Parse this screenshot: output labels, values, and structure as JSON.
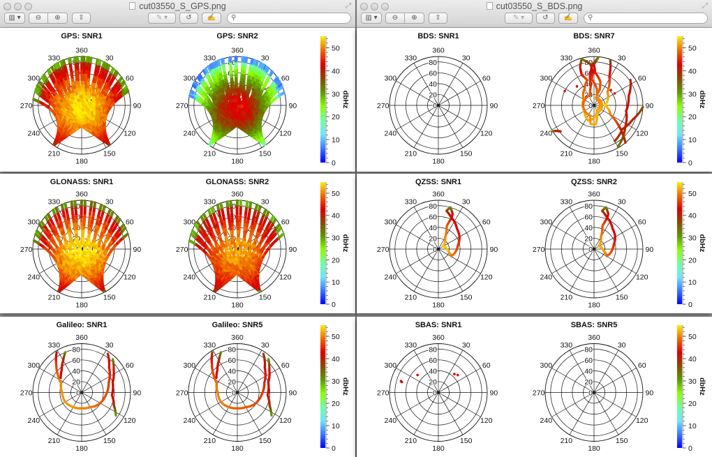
{
  "windows": [
    {
      "title": "cut03550_S_GPS.png"
    },
    {
      "title": "cut03550_S_BDS.png"
    }
  ],
  "toolbar": {
    "sidebar_icon": "sidebar-icon",
    "zoom_out_icon": "zoom-out-icon",
    "zoom_in_icon": "zoom-in-icon",
    "share_icon": "share-icon",
    "markup_icon": "markup-pen-icon",
    "rotate_icon": "rotate-icon",
    "annotate_icon": "edit-annotate-icon",
    "search_placeholder": "",
    "sidebar_glyph": "▥ ▾",
    "zoom_out_glyph": "⊖",
    "zoom_in_glyph": "⊕",
    "share_glyph": "⇪",
    "markup_glyph": "✎ ▾",
    "rotate_glyph": "↺",
    "annotate_glyph": "✍",
    "search_glyph": "⚲",
    "fullscreen_glyph": "⤢"
  },
  "colorbar": {
    "label": "dbHz",
    "range": [
      0,
      55
    ],
    "ticks": [
      "0",
      "10",
      "20",
      "30",
      "40",
      "50"
    ],
    "colormap": [
      "#0000ff",
      "#3a78ff",
      "#6fe6ff",
      "#6dffa0",
      "#8cff00",
      "#5c9a00",
      "#8a4a00",
      "#dc0000",
      "#ee6a00",
      "#ffee00"
    ]
  },
  "chart_data": [
    {
      "type": "scatter",
      "projection": "polar",
      "title": "GPS: SNR1",
      "azimuth_ticks": [
        "360",
        "30",
        "60",
        "90",
        "120",
        "150",
        "180",
        "210",
        "240",
        "270",
        "300",
        "330"
      ],
      "radial_ticks": [
        "0",
        "20",
        "40",
        "60",
        "80"
      ],
      "pattern": "dense",
      "snr_center": 55,
      "snr_edge": 38
    },
    {
      "type": "scatter",
      "projection": "polar",
      "title": "GPS: SNR2",
      "azimuth_ticks": [
        "360",
        "30",
        "60",
        "90",
        "120",
        "150",
        "180",
        "210",
        "240",
        "270",
        "300",
        "330"
      ],
      "radial_ticks": [
        "0",
        "20",
        "40",
        "60",
        "80"
      ],
      "pattern": "dense",
      "snr_center": 44,
      "snr_edge": 15
    },
    {
      "type": "scatter",
      "projection": "polar",
      "title": "BDS: SNR1",
      "azimuth_ticks": [
        "360",
        "30",
        "60",
        "90",
        "120",
        "150",
        "180",
        "210",
        "240",
        "270",
        "300",
        "330"
      ],
      "radial_ticks": [
        "0",
        "20",
        "40",
        "60",
        "80"
      ],
      "tracks": [],
      "points": []
    },
    {
      "type": "scatter",
      "projection": "polar",
      "title": "BDS: SNR7",
      "azimuth_ticks": [
        "360",
        "30",
        "60",
        "90",
        "120",
        "150",
        "180",
        "210",
        "240",
        "270",
        "300",
        "330"
      ],
      "radial_ticks": [
        "0",
        "20",
        "40",
        "60",
        "80"
      ],
      "tracks": [
        [
          [
            345,
            88,
            33
          ],
          [
            340,
            75,
            40
          ],
          [
            338,
            60,
            44
          ],
          [
            345,
            48,
            47
          ],
          [
            330,
            35,
            48
          ],
          [
            300,
            22,
            50
          ],
          [
            240,
            20,
            52
          ],
          [
            200,
            30,
            52
          ],
          [
            185,
            25,
            52
          ],
          [
            150,
            10,
            52
          ],
          [
            20,
            12,
            50
          ],
          [
            10,
            30,
            48
          ],
          [
            355,
            48,
            46
          ],
          [
            358,
            62,
            44
          ],
          [
            355,
            76,
            40
          ],
          [
            345,
            88,
            33
          ]
        ],
        [
          [
            5,
            88,
            33
          ],
          [
            0,
            75,
            40
          ],
          [
            2,
            60,
            44
          ],
          [
            15,
            45,
            47
          ],
          [
            20,
            30,
            48
          ],
          [
            15,
            15,
            50
          ],
          [
            160,
            15,
            52
          ],
          [
            175,
            35,
            52
          ],
          [
            190,
            35,
            52
          ],
          [
            200,
            20,
            50
          ],
          [
            340,
            20,
            48
          ],
          [
            350,
            35,
            46
          ],
          [
            352,
            55,
            44
          ],
          [
            358,
            75,
            40
          ],
          [
            5,
            88,
            33
          ]
        ],
        [
          [
            20,
            88,
            38
          ],
          [
            28,
            60,
            44
          ],
          [
            45,
            35,
            50
          ],
          [
            90,
            20,
            54
          ],
          [
            120,
            35,
            50
          ],
          [
            128,
            55,
            46
          ],
          [
            135,
            75,
            42
          ],
          [
            140,
            90,
            38
          ]
        ],
        [
          [
            55,
            82,
            40
          ],
          [
            75,
            66,
            41
          ],
          [
            100,
            60,
            42
          ],
          [
            125,
            70,
            40
          ],
          [
            150,
            88,
            34
          ]
        ],
        [
          [
            92,
            90,
            36
          ],
          [
            110,
            76,
            40
          ],
          [
            130,
            68,
            40
          ],
          [
            150,
            76,
            38
          ]
        ],
        [
          [
            238,
            90,
            30
          ],
          [
            236,
            84,
            40
          ],
          [
            232,
            78,
            42
          ]
        ]
      ],
      "points": [
        [
          296,
          60,
          42
        ],
        [
          318,
          47,
          42
        ],
        [
          48,
          42,
          44
        ],
        [
          60,
          44,
          42
        ]
      ]
    },
    {
      "type": "scatter",
      "projection": "polar",
      "title": "GLONASS: SNR1",
      "azimuth_ticks": [
        "360",
        "30",
        "60",
        "90",
        "120",
        "150",
        "180",
        "210",
        "240",
        "270",
        "300",
        "330"
      ],
      "radial_ticks": [
        "0",
        "20",
        "40",
        "60",
        "80"
      ],
      "pattern": "fan",
      "snr_center": 55,
      "snr_edge": 40
    },
    {
      "type": "scatter",
      "projection": "polar",
      "title": "GLONASS: SNR2",
      "azimuth_ticks": [
        "360",
        "30",
        "60",
        "90",
        "120",
        "150",
        "180",
        "210",
        "240",
        "270",
        "300",
        "330"
      ],
      "radial_ticks": [
        "0",
        "20",
        "40",
        "60",
        "80"
      ],
      "pattern": "fan",
      "snr_center": 52,
      "snr_edge": 38
    },
    {
      "type": "scatter",
      "projection": "polar",
      "title": "QZSS: SNR1",
      "azimuth_ticks": [
        "360",
        "30",
        "60",
        "90",
        "120",
        "150",
        "180",
        "210",
        "240",
        "270",
        "300",
        "330"
      ],
      "radial_ticks": [
        "0",
        "20",
        "40",
        "60",
        "80"
      ],
      "tracks": [
        [
          [
            16,
            80,
            30
          ],
          [
            22,
            70,
            42
          ],
          [
            23,
            62,
            44
          ],
          [
            20,
            45,
            48
          ],
          [
            30,
            25,
            50
          ],
          [
            57,
            10,
            53
          ],
          [
            100,
            18,
            53
          ],
          [
            119,
            27,
            50
          ],
          [
            95,
            33,
            48
          ],
          [
            78,
            37,
            46
          ],
          [
            60,
            45,
            44
          ],
          [
            42,
            51,
            43
          ],
          [
            28,
            60,
            42
          ],
          [
            23,
            62,
            42
          ],
          [
            12,
            72,
            40
          ],
          [
            16,
            80,
            32
          ]
        ]
      ],
      "points": []
    },
    {
      "type": "scatter",
      "projection": "polar",
      "title": "QZSS: SNR2",
      "azimuth_ticks": [
        "360",
        "30",
        "60",
        "90",
        "120",
        "150",
        "180",
        "210",
        "240",
        "270",
        "300",
        "330"
      ],
      "radial_ticks": [
        "0",
        "20",
        "40",
        "60",
        "80"
      ],
      "tracks": [
        [
          [
            16,
            80,
            30
          ],
          [
            22,
            70,
            41
          ],
          [
            23,
            62,
            43
          ],
          [
            20,
            45,
            47
          ],
          [
            30,
            25,
            50
          ],
          [
            57,
            10,
            52
          ],
          [
            100,
            18,
            52
          ],
          [
            119,
            27,
            49
          ],
          [
            95,
            33,
            47
          ],
          [
            78,
            37,
            45
          ],
          [
            60,
            45,
            43
          ],
          [
            42,
            51,
            42
          ],
          [
            28,
            60,
            41
          ],
          [
            23,
            62,
            41
          ],
          [
            12,
            72,
            39
          ],
          [
            16,
            80,
            32
          ]
        ]
      ],
      "points": []
    },
    {
      "type": "scatter",
      "projection": "polar",
      "title": "Galileo: SNR1",
      "azimuth_ticks": [
        "360",
        "30",
        "60",
        "90",
        "120",
        "150",
        "180",
        "210",
        "240",
        "270",
        "300",
        "330"
      ],
      "radial_ticks": [
        "0",
        "20",
        "40",
        "60",
        "80"
      ],
      "tracks": [
        [
          [
            328,
            87,
            40
          ],
          [
            318,
            70,
            46
          ],
          [
            307,
            55,
            48
          ],
          [
            295,
            42,
            50
          ],
          [
            270,
            36,
            51
          ],
          [
            242,
            35,
            51
          ],
          [
            210,
            31,
            51
          ],
          [
            180,
            29,
            50
          ],
          [
            150,
            31,
            50
          ],
          [
            122,
            39,
            48
          ],
          [
            95,
            45,
            47
          ],
          [
            70,
            53,
            46
          ],
          [
            48,
            68,
            44
          ],
          [
            34,
            86,
            40
          ]
        ],
        [
          [
            338,
            80,
            30
          ],
          [
            330,
            68,
            40
          ],
          [
            318,
            55,
            42
          ],
          [
            305,
            47,
            43
          ]
        ],
        [
          [
            43,
            84,
            30
          ],
          [
            55,
            72,
            41
          ],
          [
            72,
            60,
            42
          ],
          [
            95,
            56,
            42
          ],
          [
            112,
            64,
            40
          ],
          [
            124,
            76,
            30
          ]
        ]
      ],
      "points": []
    },
    {
      "type": "scatter",
      "projection": "polar",
      "title": "Galileo: SNR5",
      "azimuth_ticks": [
        "360",
        "30",
        "60",
        "90",
        "120",
        "150",
        "180",
        "210",
        "240",
        "270",
        "300",
        "330"
      ],
      "radial_ticks": [
        "0",
        "20",
        "40",
        "60",
        "80"
      ],
      "tracks": [
        [
          [
            328,
            87,
            38
          ],
          [
            318,
            70,
            45
          ],
          [
            307,
            55,
            47
          ],
          [
            295,
            42,
            49
          ],
          [
            270,
            36,
            50
          ],
          [
            242,
            35,
            50
          ],
          [
            210,
            31,
            49
          ],
          [
            180,
            29,
            48
          ],
          [
            150,
            31,
            48
          ],
          [
            122,
            39,
            47
          ],
          [
            95,
            45,
            46
          ],
          [
            70,
            53,
            45
          ],
          [
            48,
            68,
            43
          ],
          [
            34,
            86,
            38
          ]
        ],
        [
          [
            338,
            80,
            30
          ],
          [
            330,
            68,
            40
          ],
          [
            318,
            55,
            42
          ],
          [
            305,
            47,
            43
          ]
        ],
        [
          [
            43,
            84,
            30
          ],
          [
            55,
            72,
            41
          ],
          [
            72,
            60,
            42
          ],
          [
            95,
            56,
            42
          ],
          [
            112,
            64,
            40
          ],
          [
            124,
            76,
            30
          ]
        ]
      ],
      "points": []
    },
    {
      "type": "scatter",
      "projection": "polar",
      "title": "SBAS: SNR1",
      "azimuth_ticks": [
        "360",
        "30",
        "60",
        "90",
        "120",
        "150",
        "180",
        "210",
        "240",
        "270",
        "300",
        "330"
      ],
      "radial_ticks": [
        "0",
        "20",
        "40",
        "60",
        "80"
      ],
      "tracks": [],
      "points": [
        [
          287,
          72,
          42
        ],
        [
          286,
          70,
          42
        ],
        [
          310,
          50,
          42
        ],
        [
          41,
          45,
          42
        ],
        [
          48,
          48,
          42
        ]
      ]
    },
    {
      "type": "scatter",
      "projection": "polar",
      "title": "SBAS: SNR5",
      "azimuth_ticks": [
        "360",
        "30",
        "60",
        "90",
        "120",
        "150",
        "180",
        "210",
        "240",
        "270",
        "300",
        "330"
      ],
      "radial_ticks": [
        "0",
        "20",
        "40",
        "60",
        "80"
      ],
      "tracks": [],
      "points": []
    }
  ]
}
